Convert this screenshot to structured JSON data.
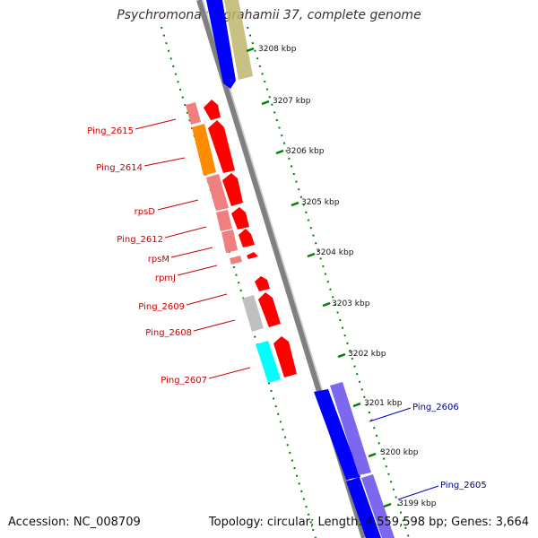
{
  "title": "Psychromonas ingrahamii 37, complete genome",
  "accession_text": "Accession: NC_008709",
  "summary_text": "Topology: circular; Length: 4,559,598 bp; Genes: 3,664",
  "colors": {
    "backbone": "#808080",
    "tick": "#008000",
    "forward_cds": "#0000ff",
    "forward_label": "#00008b",
    "reverse_label": "#cc0000",
    "reverse_arrow": "#ff0000"
  },
  "position_ticks": [
    "3208 kbp",
    "3207 kbp",
    "3206 kbp",
    "3205 kbp",
    "3204 kbp",
    "3203 kbp",
    "3202 kbp",
    "3201 kbp",
    "3200 kbp",
    "3199 kbp"
  ],
  "gene_labels_reverse": [
    "Ping_2615",
    "Ping_2614",
    "rpsD",
    "Ping_2612",
    "rpsM",
    "rpmJ",
    "Ping_2609",
    "Ping_2608",
    "Ping_2607"
  ],
  "gene_labels_forward": [
    "Ping_2606",
    "Ping_2605"
  ]
}
